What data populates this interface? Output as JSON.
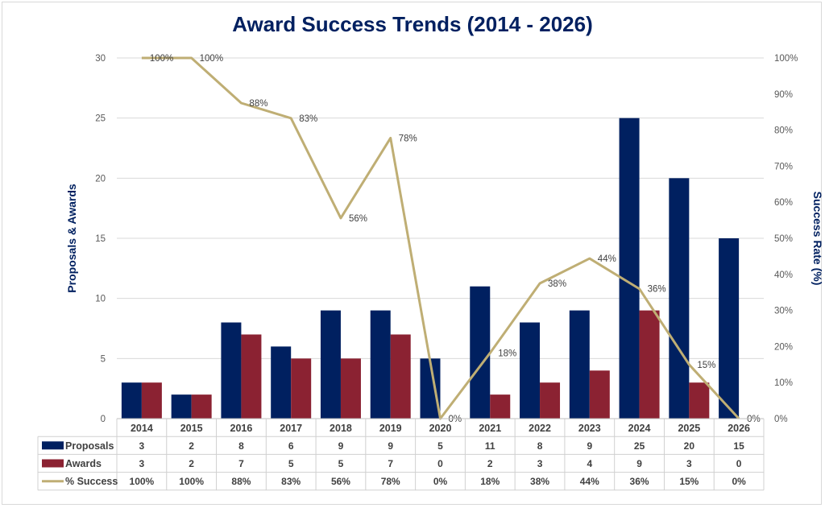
{
  "chart_data": {
    "type": "bar",
    "title": "Award Success Trends (2014 - 2026)",
    "ylabel": "Proposals & Awards",
    "y2label": "Success Rate (%)",
    "ylim": [
      0,
      30
    ],
    "yticks": [
      "0",
      "5",
      "10",
      "15",
      "20",
      "25",
      "30"
    ],
    "y2lim": [
      0,
      100
    ],
    "y2ticks": [
      "0%",
      "10%",
      "20%",
      "30%",
      "40%",
      "50%",
      "60%",
      "70%",
      "80%",
      "90%",
      "100%"
    ],
    "categories": [
      "2014",
      "2015",
      "2016",
      "2017",
      "2018",
      "2019",
      "2020",
      "2021",
      "2022",
      "2023",
      "2024",
      "2025",
      "2026"
    ],
    "grid": true,
    "legend": "data-table",
    "series": [
      {
        "name": "Proposals",
        "type": "bar",
        "axis": "left",
        "color": "#002060",
        "values": [
          3,
          2,
          8,
          6,
          9,
          9,
          5,
          11,
          8,
          9,
          25,
          20,
          15
        ]
      },
      {
        "name": "Awards",
        "type": "bar",
        "axis": "left",
        "color": "#8B2232",
        "values": [
          3,
          2,
          7,
          5,
          5,
          7,
          0,
          2,
          3,
          4,
          9,
          3,
          0
        ]
      },
      {
        "name": "% Success",
        "type": "line",
        "axis": "right",
        "color": "#BFAE74",
        "values": [
          100,
          100,
          87.5,
          83.3,
          55.6,
          77.8,
          0,
          18.2,
          37.5,
          44.4,
          36,
          15,
          0
        ],
        "labels": [
          "100%",
          "100%",
          "88%",
          "83%",
          "56%",
          "78%",
          "0%",
          "18%",
          "38%",
          "44%",
          "36%",
          "15%",
          "0%"
        ]
      }
    ]
  }
}
